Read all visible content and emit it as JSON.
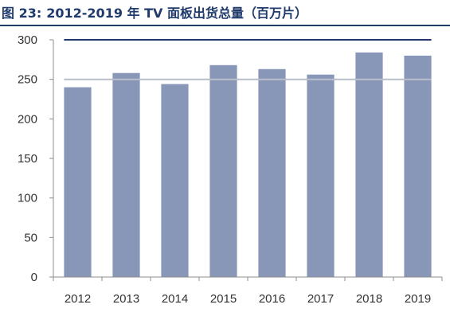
{
  "figure": {
    "prefix": "图 23:",
    "title": "2012-2019 年 TV 面板出货总量（百万片）"
  },
  "chart_data": {
    "type": "bar",
    "title": "2012-2019 年 TV 面板出货总量（百万片）",
    "categories": [
      "2012",
      "2013",
      "2014",
      "2015",
      "2016",
      "2017",
      "2018",
      "2019"
    ],
    "values": [
      240,
      258,
      244,
      268,
      263,
      256,
      284,
      280
    ],
    "ylim": [
      0,
      300
    ],
    "yticks": [
      0,
      50,
      100,
      150,
      200,
      250,
      300
    ],
    "grid": false,
    "legend": "none",
    "reference_lines": [
      300,
      250
    ],
    "colors": {
      "bar": "#8897b8",
      "line_300": "#24366b",
      "line_250": "#b8bec9",
      "axis": "#8c8c8c"
    }
  }
}
